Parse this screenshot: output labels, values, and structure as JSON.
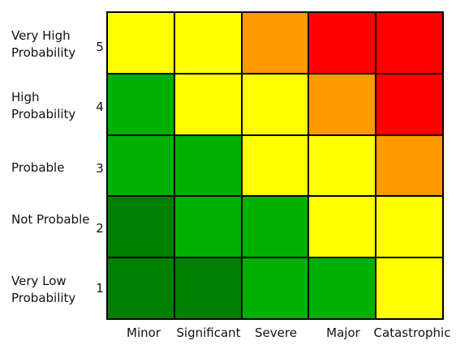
{
  "matrix": {
    "rows": [
      {
        "label": "Very High Probability",
        "number": "5",
        "cells": [
          "#ffff00",
          "#ffff00",
          "#ff9900",
          "#ff0000",
          "#ff0000"
        ]
      },
      {
        "label": "High Probability",
        "number": "4",
        "cells": [
          "#00b000",
          "#ffff00",
          "#ffff00",
          "#ff9900",
          "#ff0000"
        ]
      },
      {
        "label": "Probable",
        "number": "3",
        "cells": [
          "#00b000",
          "#00b000",
          "#ffff00",
          "#ffff00",
          "#ff9900"
        ]
      },
      {
        "label": "Not Probable",
        "number": "2",
        "cells": [
          "#008000",
          "#00b000",
          "#00b000",
          "#ffff00",
          "#ffff00"
        ]
      },
      {
        "label": "Very Low Probability",
        "number": "1",
        "cells": [
          "#008000",
          "#008000",
          "#00b000",
          "#00b000",
          "#ffff00"
        ]
      }
    ],
    "columns": [
      "Minor",
      "Significant",
      "Severe",
      "Major",
      "Catastrophic"
    ]
  },
  "colors": {
    "dark_green": "#008000",
    "green": "#00b000",
    "yellow": "#ffff00",
    "orange": "#ff9900",
    "red": "#ff0000",
    "grid_line": "#000000"
  }
}
